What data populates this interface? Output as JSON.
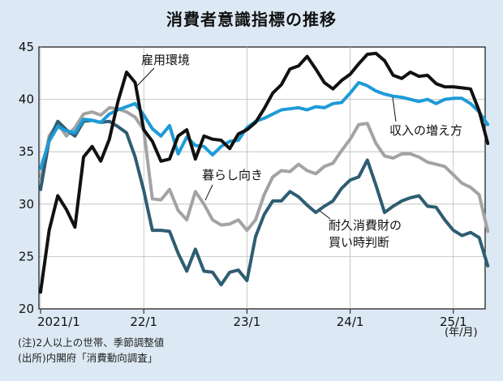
{
  "chart_data": {
    "type": "line",
    "title": "消費者意識指標の推移",
    "x_unit": "(年/月)",
    "x_ticks": [
      "2021/1",
      "22/1",
      "23/1",
      "24/1",
      "25/1"
    ],
    "ylim": [
      20,
      45
    ],
    "y_ticks": [
      20,
      25,
      30,
      35,
      40,
      45
    ],
    "months_count": 53,
    "series": [
      {
        "name": "雇用環境",
        "color": "#111111",
        "values": [
          21.6,
          27.5,
          30.8,
          29.5,
          27.8,
          34.5,
          35.5,
          34.1,
          36.2,
          39.8,
          42.6,
          41.6,
          37.1,
          36.0,
          34.1,
          34.3,
          36.5,
          37.1,
          34.3,
          36.5,
          36.2,
          36.1,
          35.3,
          36.7,
          37.1,
          37.8,
          39.1,
          40.6,
          41.4,
          42.9,
          43.2,
          44.1,
          42.9,
          41.6,
          41.0,
          41.8,
          42.4,
          43.4,
          44.3,
          44.4,
          43.7,
          42.3,
          42.0,
          42.6,
          42.2,
          42.3,
          41.5,
          41.2,
          41.2,
          41.1,
          41.0,
          38.9,
          35.8
        ]
      },
      {
        "name": "収入の増え方",
        "color": "#1e9bd8",
        "values": [
          33.4,
          36.0,
          37.4,
          37.0,
          36.8,
          38.1,
          38.0,
          37.8,
          38.6,
          39.0,
          39.3,
          39.6,
          38.5,
          37.2,
          36.5,
          37.5,
          34.8,
          36.4,
          35.6,
          35.5,
          34.7,
          35.5,
          36.0,
          36.1,
          37.3,
          37.9,
          38.2,
          38.6,
          39.0,
          39.1,
          39.2,
          39.0,
          39.3,
          39.2,
          39.6,
          39.7,
          40.6,
          41.6,
          41.3,
          40.8,
          40.5,
          40.3,
          40.2,
          40.0,
          39.8,
          40.0,
          39.6,
          40.0,
          40.1,
          40.1,
          39.6,
          38.8,
          37.6
        ]
      },
      {
        "name": "暮らし向き",
        "color": "#a3a3a3",
        "values": [
          32.4,
          36.5,
          37.7,
          36.5,
          37.3,
          38.6,
          38.8,
          38.5,
          39.2,
          39.1,
          38.8,
          38.3,
          37.1,
          30.5,
          30.4,
          31.4,
          29.4,
          28.5,
          31.2,
          30.0,
          28.5,
          28.0,
          28.1,
          28.5,
          27.5,
          28.5,
          30.9,
          32.6,
          33.2,
          33.1,
          33.8,
          33.2,
          32.9,
          33.6,
          33.9,
          35.1,
          36.2,
          37.6,
          37.7,
          35.8,
          34.6,
          34.4,
          34.8,
          34.8,
          34.5,
          34.0,
          33.8,
          33.6,
          32.8,
          32.0,
          31.6,
          30.9,
          27.4
        ]
      },
      {
        "name": "耐久消費財の買い時判断",
        "color": "#2e5d73",
        "values": [
          31.4,
          36.1,
          37.9,
          37.1,
          36.5,
          37.9,
          38.0,
          37.8,
          37.9,
          37.4,
          36.8,
          34.5,
          31.3,
          27.5,
          27.5,
          27.4,
          25.3,
          23.6,
          25.7,
          23.6,
          23.5,
          22.3,
          23.5,
          23.7,
          22.7,
          26.9,
          29.0,
          30.3,
          30.3,
          31.2,
          30.7,
          29.9,
          29.2,
          29.8,
          30.3,
          31.5,
          32.3,
          32.6,
          34.2,
          31.8,
          29.2,
          29.8,
          30.3,
          30.6,
          30.8,
          29.8,
          29.7,
          28.5,
          27.5,
          27.0,
          27.3,
          26.8,
          24.1
        ]
      }
    ],
    "series_labels": [
      "雇用環境",
      "収入の増え方",
      "暮らし向き",
      "耐久消費財の",
      "買い時判断"
    ]
  },
  "notes": [
    "(注)2人以上の世帯、季節調整値",
    "(出所)内閣府「消費動向調査」"
  ]
}
